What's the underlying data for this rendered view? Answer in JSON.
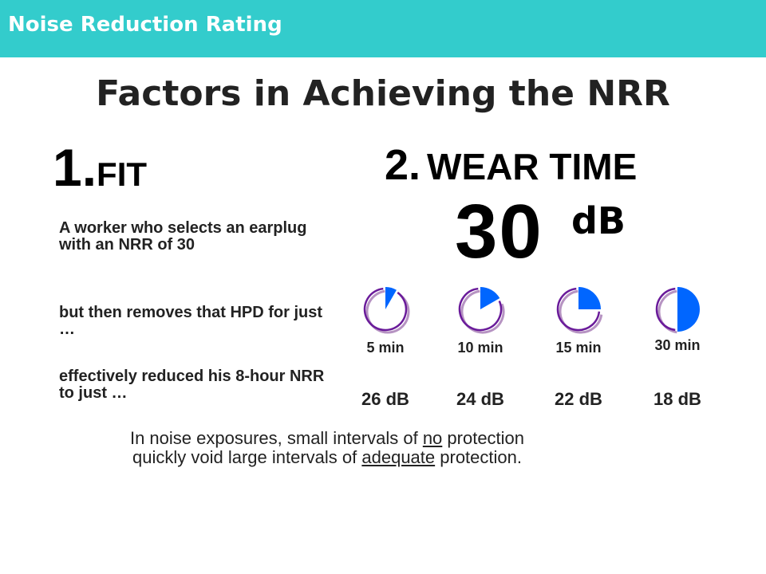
{
  "header": {
    "title": "Noise Reduction Rating"
  },
  "slide": {
    "title": "Factors in Achieving the NRR"
  },
  "fit": {
    "number": "1.",
    "label": "FIT"
  },
  "wear_time": {
    "number": "2.",
    "label": "WEAR TIME"
  },
  "nrr_display": {
    "value": "30",
    "unit": "dB"
  },
  "paragraphs": {
    "p1": "A worker who selects an earplug with an NRR of 30",
    "p2": "but then removes that HPD for just …",
    "p3": "effectively reduced his 8-hour NRR to just …"
  },
  "gauges": [
    {
      "minutes_label": "5 min",
      "db_label": "26 dB",
      "fraction": 0.083
    },
    {
      "minutes_label": "10 min",
      "db_label": "24 dB",
      "fraction": 0.167
    },
    {
      "minutes_label": "15 min",
      "db_label": "22 dB",
      "fraction": 0.25
    },
    {
      "minutes_label": "30 min",
      "db_label": "18 dB",
      "fraction": 0.5
    }
  ],
  "footer": {
    "part1": "In noise exposures, small intervals of ",
    "no": "no",
    "part2": " protection",
    "part3": "quickly void large intervals of ",
    "adequate": "adequate",
    "part4": " protection."
  },
  "colors": {
    "header_bar": "#33cccc",
    "wedge": "#0066ff",
    "ring": "#6a1b9a"
  }
}
